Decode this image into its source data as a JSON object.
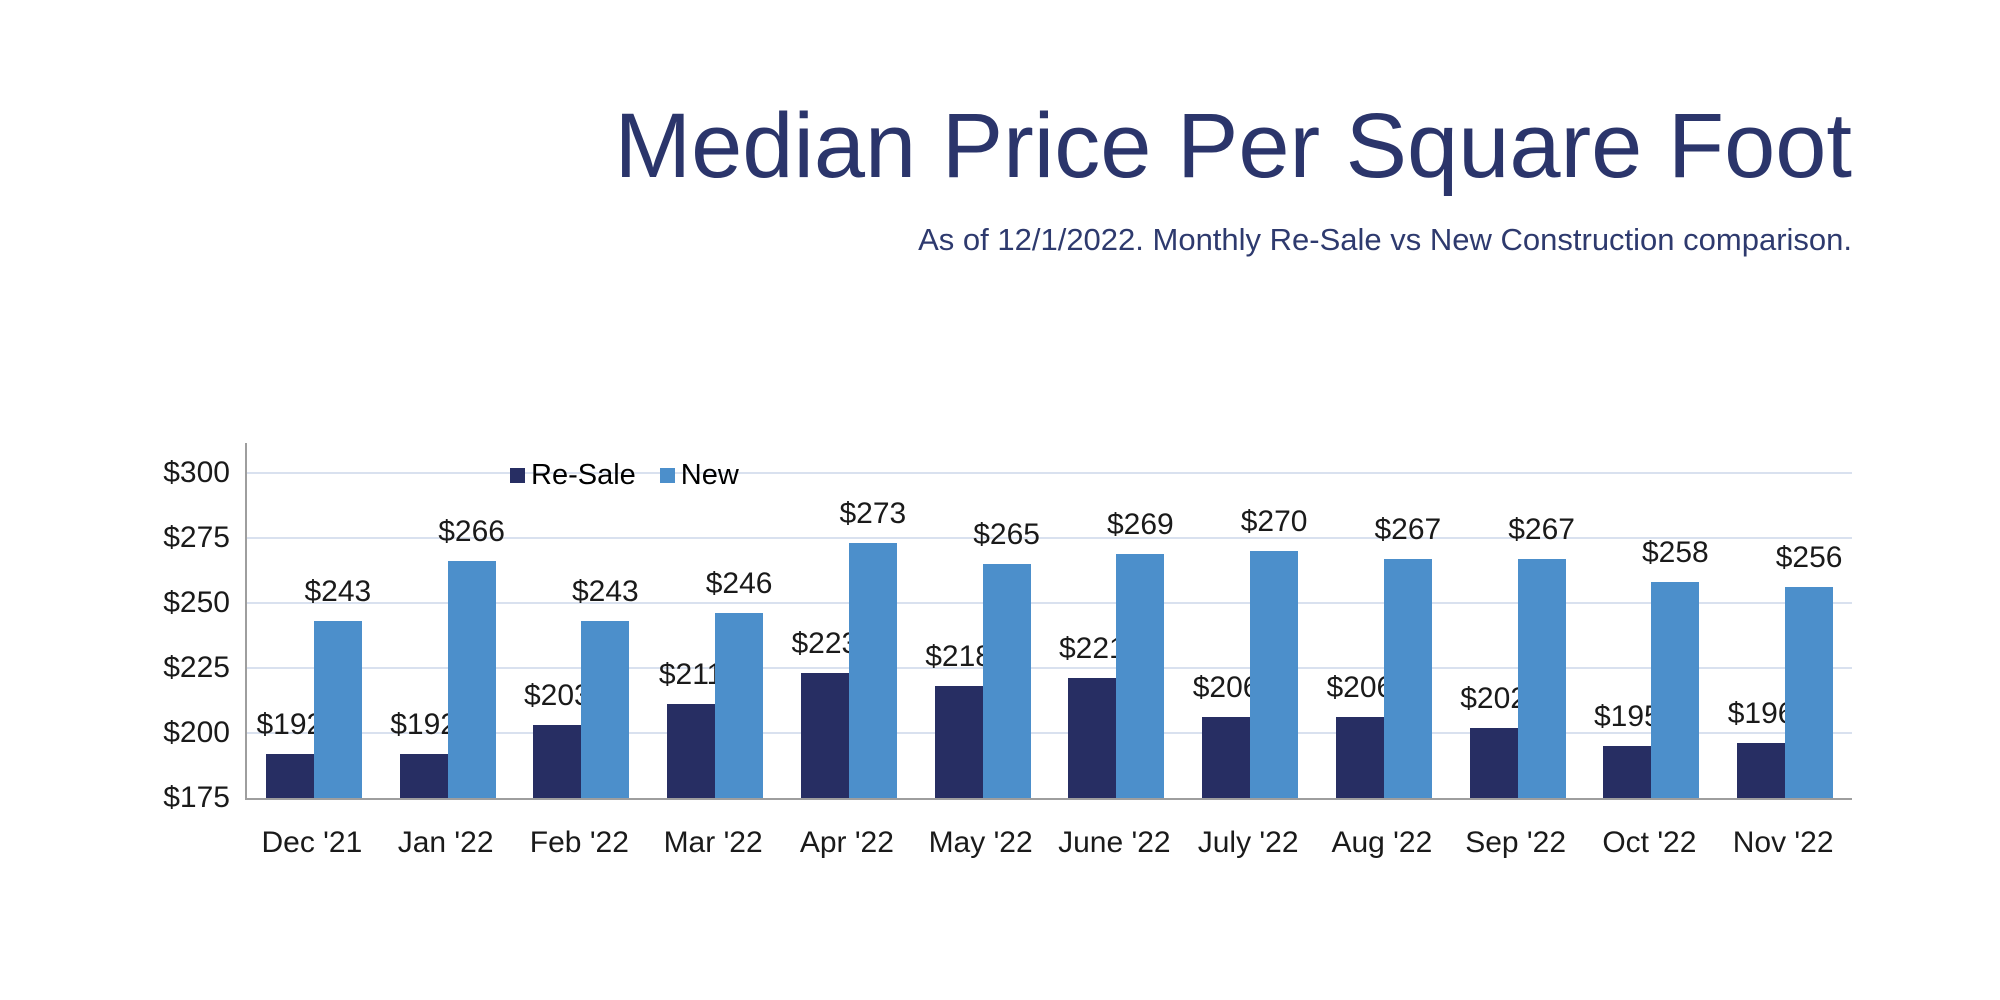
{
  "header": {
    "title": "Median Price Per Square Foot",
    "subtitle": "As of 12/1/2022. Monthly Re-Sale vs New Construction comparison."
  },
  "chart_data": {
    "type": "bar",
    "title": "Median Price Per Square Foot",
    "subtitle": "As of 12/1/2022. Monthly Re-Sale vs New Construction comparison.",
    "categories": [
      "Dec '21",
      "Jan '22",
      "Feb '22",
      "Mar '22",
      "Apr '22",
      "May '22",
      "June '22",
      "July '22",
      "Aug '22",
      "Sep '22",
      "Oct '22",
      "Nov '22"
    ],
    "series": [
      {
        "name": "Re-Sale",
        "color": "#272E63",
        "values": [
          192,
          192,
          203,
          211,
          223,
          218,
          221,
          206,
          206,
          202,
          195,
          196
        ]
      },
      {
        "name": "New",
        "color": "#4C8FCB",
        "values": [
          243,
          266,
          243,
          246,
          273,
          265,
          269,
          270,
          267,
          267,
          258,
          256
        ]
      }
    ],
    "value_label_prefix": "$",
    "y_axis": {
      "min": 175,
      "max": 300,
      "tick_step": 25,
      "ticks": [
        {
          "label": "$300",
          "value": 300
        },
        {
          "label": "$275",
          "value": 275
        },
        {
          "label": "$250",
          "value": 250
        },
        {
          "label": "$225",
          "value": 225
        },
        {
          "label": "$200",
          "value": 200
        },
        {
          "label": "$175",
          "value": 175
        }
      ]
    },
    "grid": true,
    "legend_position": "top-inside-left",
    "value_labels_shown": true
  },
  "colors": {
    "background": "#FFFFFF",
    "title": "#2B356B",
    "subtitle": "#2E3A6E",
    "bar_resale": "#272E63",
    "bar_new": "#4C8FCB",
    "gridline": "#D9E1EF",
    "axis_line": "#9E9E9E",
    "tick_label": "#1A1A1A",
    "value_label": "#1A1A1A"
  }
}
